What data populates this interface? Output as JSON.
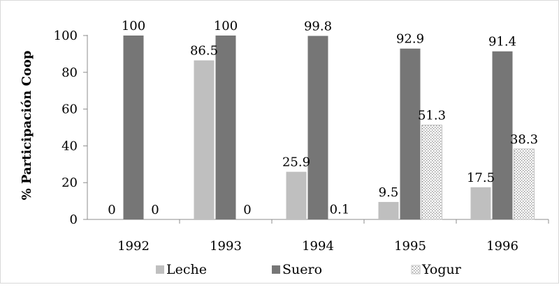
{
  "chart_data": {
    "type": "bar",
    "title": "",
    "xlabel": "",
    "ylabel": "% Participación Coop",
    "categories": [
      "1992",
      "1993",
      "1994",
      "1995",
      "1996"
    ],
    "ylim": [
      0,
      100
    ],
    "yticks": [
      0,
      20,
      40,
      60,
      80,
      100
    ],
    "ytick_labels": [
      "0",
      "20",
      "40",
      "60",
      "80",
      "100"
    ],
    "grid": false,
    "legend_position": "bottom",
    "series": [
      {
        "name": "Leche",
        "values": [
          0,
          86.5,
          25.9,
          9.5,
          17.5
        ],
        "labels": [
          "0",
          "86.5",
          "25.9",
          "9.5",
          "17.5"
        ],
        "color": "#bfbfbf",
        "pattern": "solid"
      },
      {
        "name": "Suero",
        "values": [
          100,
          100,
          99.8,
          92.9,
          91.4
        ],
        "labels": [
          "100",
          "100",
          "99.8",
          "92.9",
          "91.4"
        ],
        "color": "#767676",
        "pattern": "solid"
      },
      {
        "name": "Yogur",
        "values": [
          0,
          0,
          0.1,
          51.3,
          38.3
        ],
        "labels": [
          "0",
          "0",
          "0.1",
          "51.3",
          "38.3"
        ],
        "color": "#ffffff",
        "pattern": "dotted"
      }
    ]
  }
}
